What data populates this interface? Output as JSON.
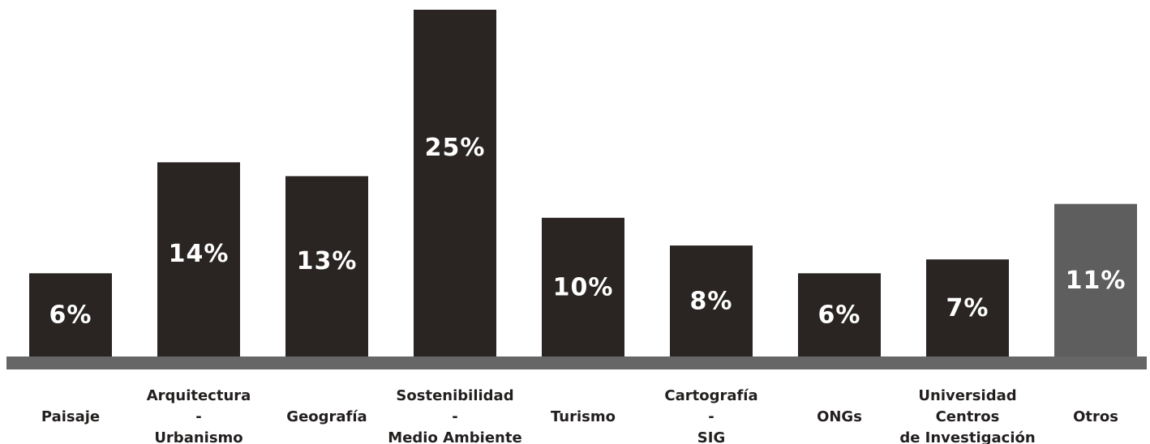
{
  "chart_data": {
    "type": "bar",
    "categories": [
      [
        "Paisaje"
      ],
      [
        "Arquitectura",
        "-",
        "Urbanismo"
      ],
      [
        "Geografía"
      ],
      [
        "Sostenibilidad",
        "-",
        "Medio Ambiente"
      ],
      [
        "Turismo"
      ],
      [
        "Cartografía",
        "-",
        "SIG"
      ],
      [
        "ONGs"
      ],
      [
        "Universidad",
        "Centros",
        "de Investigación"
      ],
      [
        "Otros"
      ]
    ],
    "values": [
      6,
      14,
      13,
      25,
      10,
      8,
      6,
      7,
      11
    ],
    "value_labels": [
      "6%",
      "14%",
      "13%",
      "25%",
      "10%",
      "8%",
      "6%",
      "7%",
      "11%"
    ],
    "ylim": [
      0,
      25
    ],
    "grid": false,
    "legend": "none",
    "colors": {
      "bar": "#2a2523",
      "highlight_bar": "#5e5e5e",
      "baseline": "#666666",
      "value_label": "#ffffff",
      "category_label": "#231f1f"
    },
    "highlight_index": 8
  }
}
